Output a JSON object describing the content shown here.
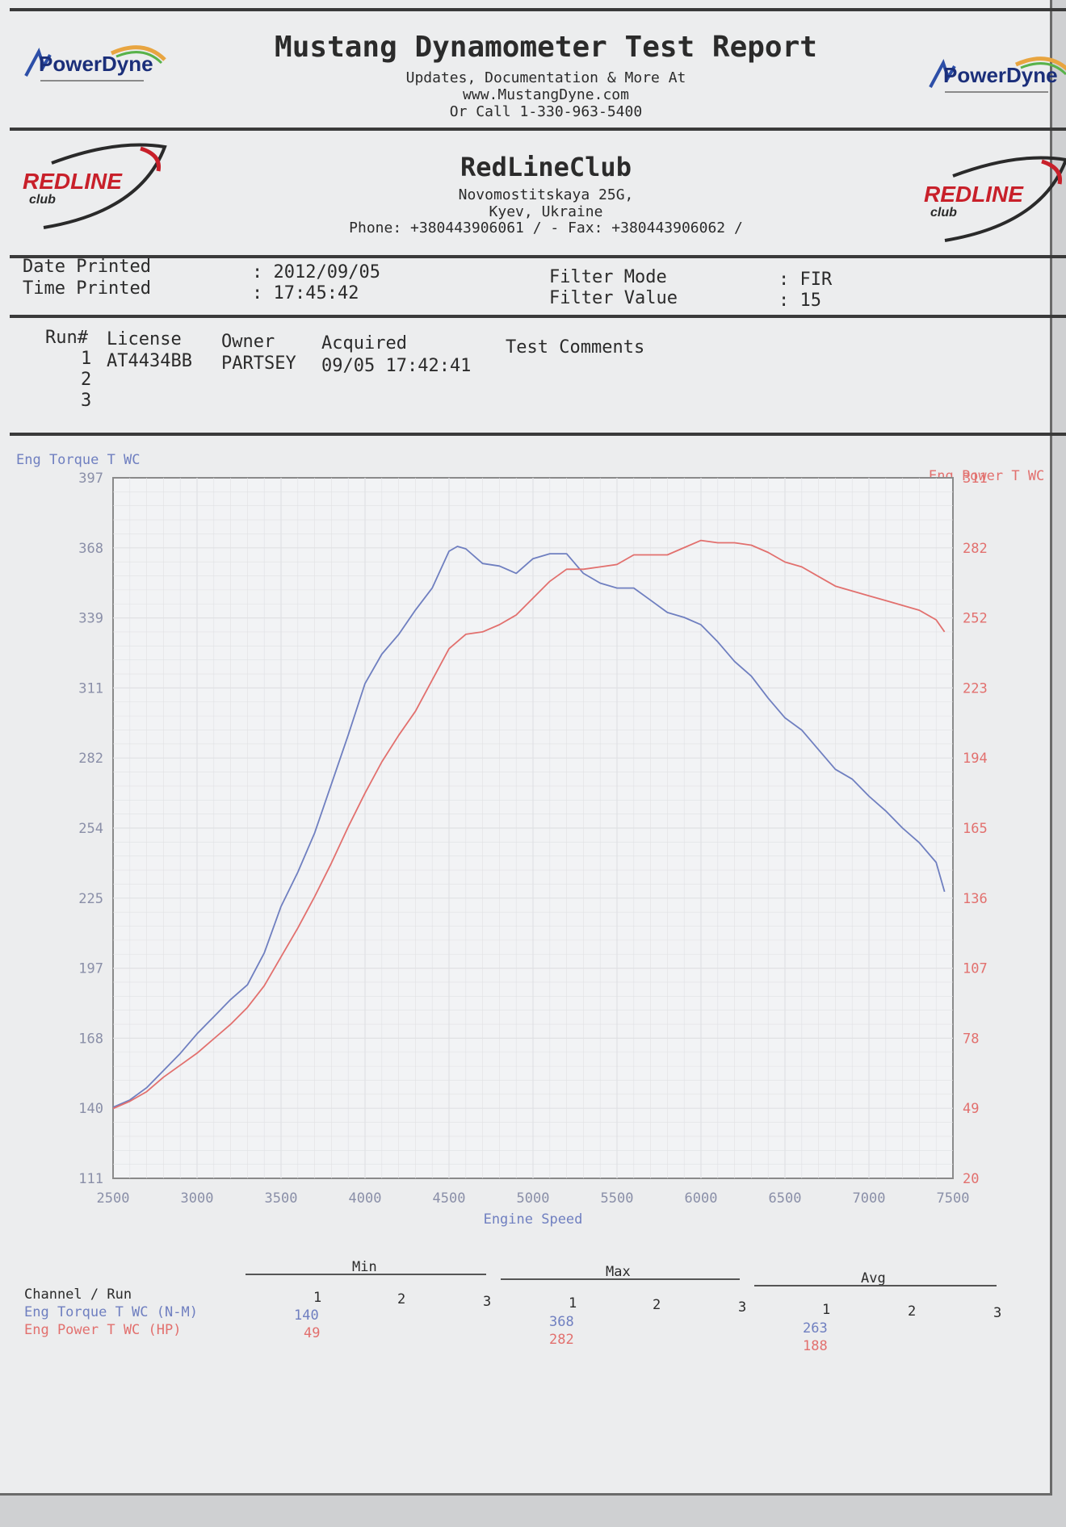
{
  "report": {
    "title": "Mustang Dynamometer Test Report",
    "line1": "Updates, Documentation & More At",
    "line2": "www.MustangDyne.com",
    "line3": "Or Call 1-330-963-5400",
    "logo_text": "PowerDyne"
  },
  "shop": {
    "name": "RedLineClub",
    "address1": "Novomostitskaya 25G,",
    "address2": "Kyev, Ukraine",
    "phone_line": "Phone: +380443906061 /  - Fax: +380443906062 /",
    "logo_text": "REDLINE",
    "logo_sub": "club"
  },
  "meta": {
    "date_label": "Date Printed",
    "date_value": ": 2012/09/05",
    "time_label": "Time Printed",
    "time_value": ": 17:45:42",
    "filter_mode_label": "Filter Mode",
    "filter_mode_value": ": FIR",
    "filter_value_label": "Filter Value",
    "filter_value_value": ": 15"
  },
  "runs": {
    "headers": [
      "Run#",
      "License",
      "Owner",
      "Acquired",
      "Test Comments"
    ],
    "rows": [
      {
        "run": "1",
        "license": "AT4434BB",
        "owner": "PARTSEY",
        "acquired": "09/05 17:42:41",
        "comments": ""
      },
      {
        "run": "2",
        "license": "",
        "owner": "",
        "acquired": "",
        "comments": ""
      },
      {
        "run": "3",
        "license": "",
        "owner": "",
        "acquired": "",
        "comments": ""
      }
    ]
  },
  "colors": {
    "torque": "#6f7fc0",
    "power": "#e2706e",
    "grid": "#e0e1e4",
    "axis": "#8a8a8a"
  },
  "chart_data": {
    "type": "line",
    "xlabel": "Engine Speed",
    "ylabel_left": "Eng Torque T WC",
    "ylabel_right": "Eng Power T WC",
    "xlim": [
      2500,
      7500
    ],
    "ylim_left": [
      111,
      397
    ],
    "ylim_right": [
      20,
      311
    ],
    "x_ticks": [
      "2500",
      "3000",
      "3500",
      "4000",
      "4500",
      "5000",
      "5500",
      "6000",
      "6500",
      "7000",
      "7500"
    ],
    "y_ticks_left": [
      "111",
      "140",
      "168",
      "197",
      "225",
      "254",
      "282",
      "311",
      "339",
      "368",
      "397"
    ],
    "y_ticks_right": [
      "20",
      "49",
      "78",
      "107",
      "136",
      "165",
      "194",
      "223",
      "252",
      "282",
      "311"
    ],
    "grid": true,
    "series": [
      {
        "name": "Eng Torque T WC",
        "axis": "left",
        "x": [
          2500,
          2600,
          2700,
          2800,
          2900,
          3000,
          3100,
          3200,
          3300,
          3400,
          3500,
          3600,
          3700,
          3800,
          3900,
          4000,
          4100,
          4200,
          4300,
          4400,
          4500,
          4550,
          4600,
          4700,
          4800,
          4900,
          5000,
          5100,
          5200,
          5300,
          5400,
          5500,
          5600,
          5700,
          5800,
          5900,
          6000,
          6100,
          6200,
          6300,
          6400,
          6500,
          6600,
          6700,
          6800,
          6900,
          7000,
          7100,
          7200,
          7300,
          7400,
          7450
        ],
        "y": [
          140,
          143,
          148,
          155,
          162,
          170,
          177,
          184,
          190,
          203,
          222,
          236,
          252,
          272,
          292,
          313,
          325,
          333,
          343,
          352,
          367,
          369,
          368,
          362,
          361,
          358,
          364,
          366,
          366,
          358,
          354,
          352,
          352,
          347,
          342,
          340,
          337,
          330,
          322,
          316,
          307,
          299,
          294,
          286,
          278,
          274,
          267,
          261,
          254,
          248,
          240,
          228
        ]
      },
      {
        "name": "Eng Power T WC",
        "axis": "right",
        "x": [
          2500,
          2600,
          2700,
          2800,
          2900,
          3000,
          3100,
          3200,
          3300,
          3400,
          3500,
          3600,
          3700,
          3800,
          3900,
          4000,
          4100,
          4200,
          4300,
          4400,
          4500,
          4600,
          4700,
          4800,
          4900,
          5000,
          5100,
          5200,
          5300,
          5400,
          5500,
          5600,
          5700,
          5800,
          5900,
          6000,
          6100,
          6200,
          6300,
          6400,
          6500,
          6600,
          6700,
          6800,
          6900,
          7000,
          7100,
          7200,
          7300,
          7400,
          7450
        ],
        "y": [
          49,
          52,
          56,
          62,
          67,
          72,
          78,
          84,
          91,
          100,
          112,
          124,
          137,
          151,
          166,
          180,
          193,
          204,
          214,
          227,
          240,
          246,
          247,
          250,
          254,
          261,
          268,
          273,
          273,
          274,
          275,
          279,
          279,
          279,
          282,
          285,
          284,
          284,
          283,
          280,
          276,
          274,
          270,
          266,
          264,
          262,
          260,
          258,
          256,
          252,
          247
        ]
      }
    ]
  },
  "summary": {
    "groups": [
      "Min",
      "Max",
      "Avg"
    ],
    "run_cols": [
      "1",
      "2",
      "3"
    ],
    "channel_header": "Channel / Run",
    "rows": [
      {
        "label": "Eng Torque T WC (N-M)",
        "min": "140",
        "max": "368",
        "avg": "263"
      },
      {
        "label": "Eng Power T WC (HP)",
        "min": "49",
        "max": "282",
        "avg": "188"
      }
    ]
  }
}
